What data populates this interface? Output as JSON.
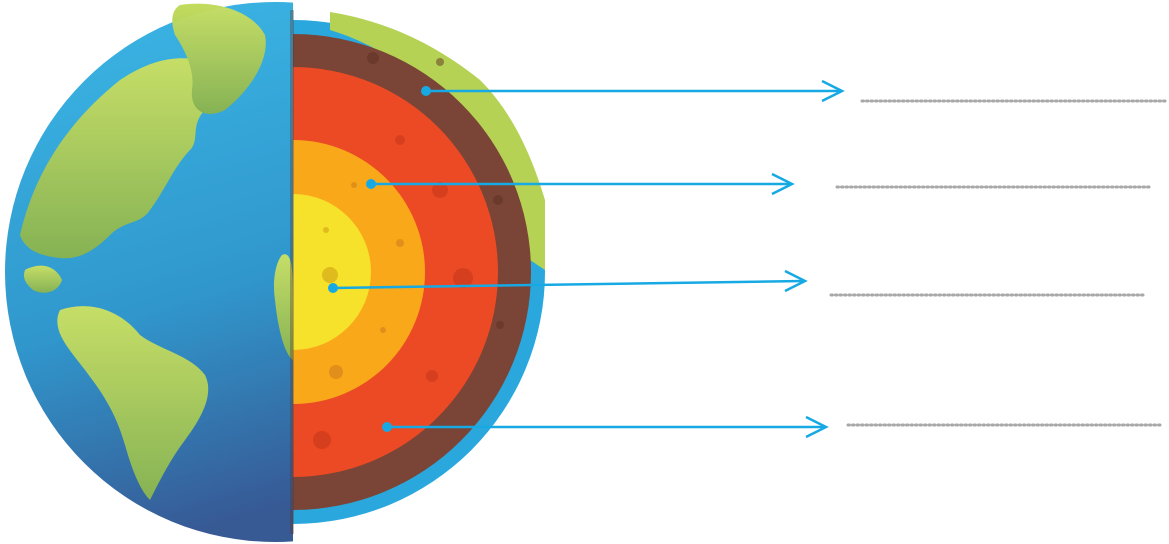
{
  "diagram": {
    "subject": "earth-layers-cross-section",
    "layers": [
      {
        "id": "crust",
        "color": "#7a4536"
      },
      {
        "id": "mantle",
        "color": "#ec4a24"
      },
      {
        "id": "outer-core",
        "color": "#f9a81a"
      },
      {
        "id": "inner-core",
        "color": "#f6e22a"
      }
    ],
    "ocean_color": "#2aa8dd",
    "land_color": "#b5d255",
    "pointer_color": "#17a9e3",
    "blank_line_color": "#a8a8a8",
    "blank_labels": [
      "",
      "",
      "",
      ""
    ]
  }
}
